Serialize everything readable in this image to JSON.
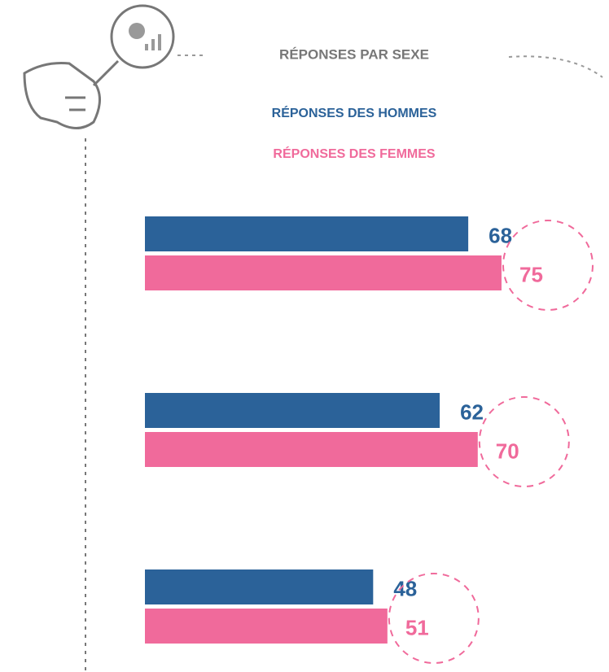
{
  "chart_data": {
    "type": "bar",
    "orientation": "horizontal",
    "title": "RÉPONSES PAR SEXE",
    "categories": [
      null,
      null,
      null
    ],
    "series": [
      {
        "name": "RÉPONSES DES HOMMES",
        "color": "#2b6299",
        "values": [
          68,
          62,
          48
        ]
      },
      {
        "name": "RÉPONSES DES FEMMES",
        "color": "#f06a9b",
        "values": [
          75,
          70,
          51
        ]
      }
    ]
  }
}
